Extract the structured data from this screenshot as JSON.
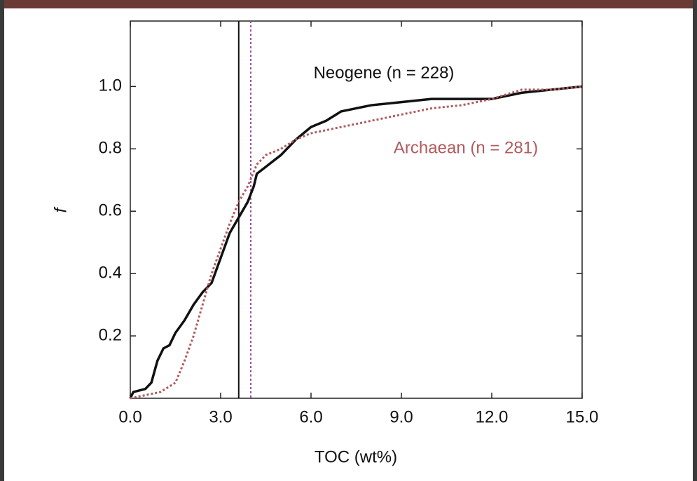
{
  "chart_data": {
    "type": "line",
    "xlabel": "TOC (wt%)",
    "ylabel": "f",
    "xlim": [
      0,
      15
    ],
    "ylim": [
      0,
      1.21
    ],
    "xticks": [
      {
        "value": 0,
        "label": "0.0"
      },
      {
        "value": 3,
        "label": "3.0"
      },
      {
        "value": 6,
        "label": "6.0"
      },
      {
        "value": 9,
        "label": "9.0"
      },
      {
        "value": 12,
        "label": "12.0"
      },
      {
        "value": 15,
        "label": "15.0"
      }
    ],
    "yticks": [
      0.2,
      0.4,
      0.6,
      0.8,
      {
        "value": 1,
        "label": "1.0"
      }
    ],
    "series": [
      {
        "name": "Neogene (n = 228)",
        "color": "#111111",
        "style": "solid",
        "x": [
          0,
          0.1,
          0.5,
          0.7,
          0.9,
          1.1,
          1.3,
          1.5,
          1.8,
          2.1,
          2.4,
          2.7,
          3.0,
          3.3,
          3.6,
          3.9,
          4.1,
          4.2,
          4.6,
          5.0,
          5.5,
          6.0,
          6.5,
          7.0,
          8.0,
          9.0,
          10.0,
          11.0,
          12.0,
          13.0,
          14.0,
          15.0
        ],
        "values": [
          0,
          0.02,
          0.03,
          0.05,
          0.12,
          0.16,
          0.17,
          0.21,
          0.25,
          0.3,
          0.34,
          0.37,
          0.45,
          0.53,
          0.58,
          0.63,
          0.68,
          0.72,
          0.75,
          0.78,
          0.83,
          0.87,
          0.89,
          0.92,
          0.94,
          0.95,
          0.96,
          0.96,
          0.96,
          0.98,
          0.99,
          1.0
        ]
      },
      {
        "name": "Archaean (n = 281)",
        "color": "#b25a5e",
        "style": "dotted",
        "x": [
          0,
          0.5,
          1.0,
          1.5,
          1.8,
          2.1,
          2.4,
          2.7,
          3.0,
          3.3,
          3.6,
          3.9,
          4.2,
          4.5,
          5.0,
          5.5,
          6.0,
          6.5,
          7.0,
          8.0,
          9.0,
          10.0,
          11.0,
          12.0,
          13.0,
          14.0,
          15.0
        ],
        "values": [
          0,
          0.01,
          0.02,
          0.05,
          0.12,
          0.2,
          0.3,
          0.4,
          0.48,
          0.56,
          0.63,
          0.68,
          0.75,
          0.78,
          0.8,
          0.83,
          0.85,
          0.86,
          0.87,
          0.89,
          0.91,
          0.93,
          0.94,
          0.96,
          0.99,
          0.99,
          1.0
        ]
      }
    ],
    "vlines": [
      {
        "x": 3.6,
        "color": "#111111",
        "style": "solid"
      },
      {
        "x": 4.0,
        "color": "#9b4fa0",
        "style": "dotted"
      }
    ]
  }
}
